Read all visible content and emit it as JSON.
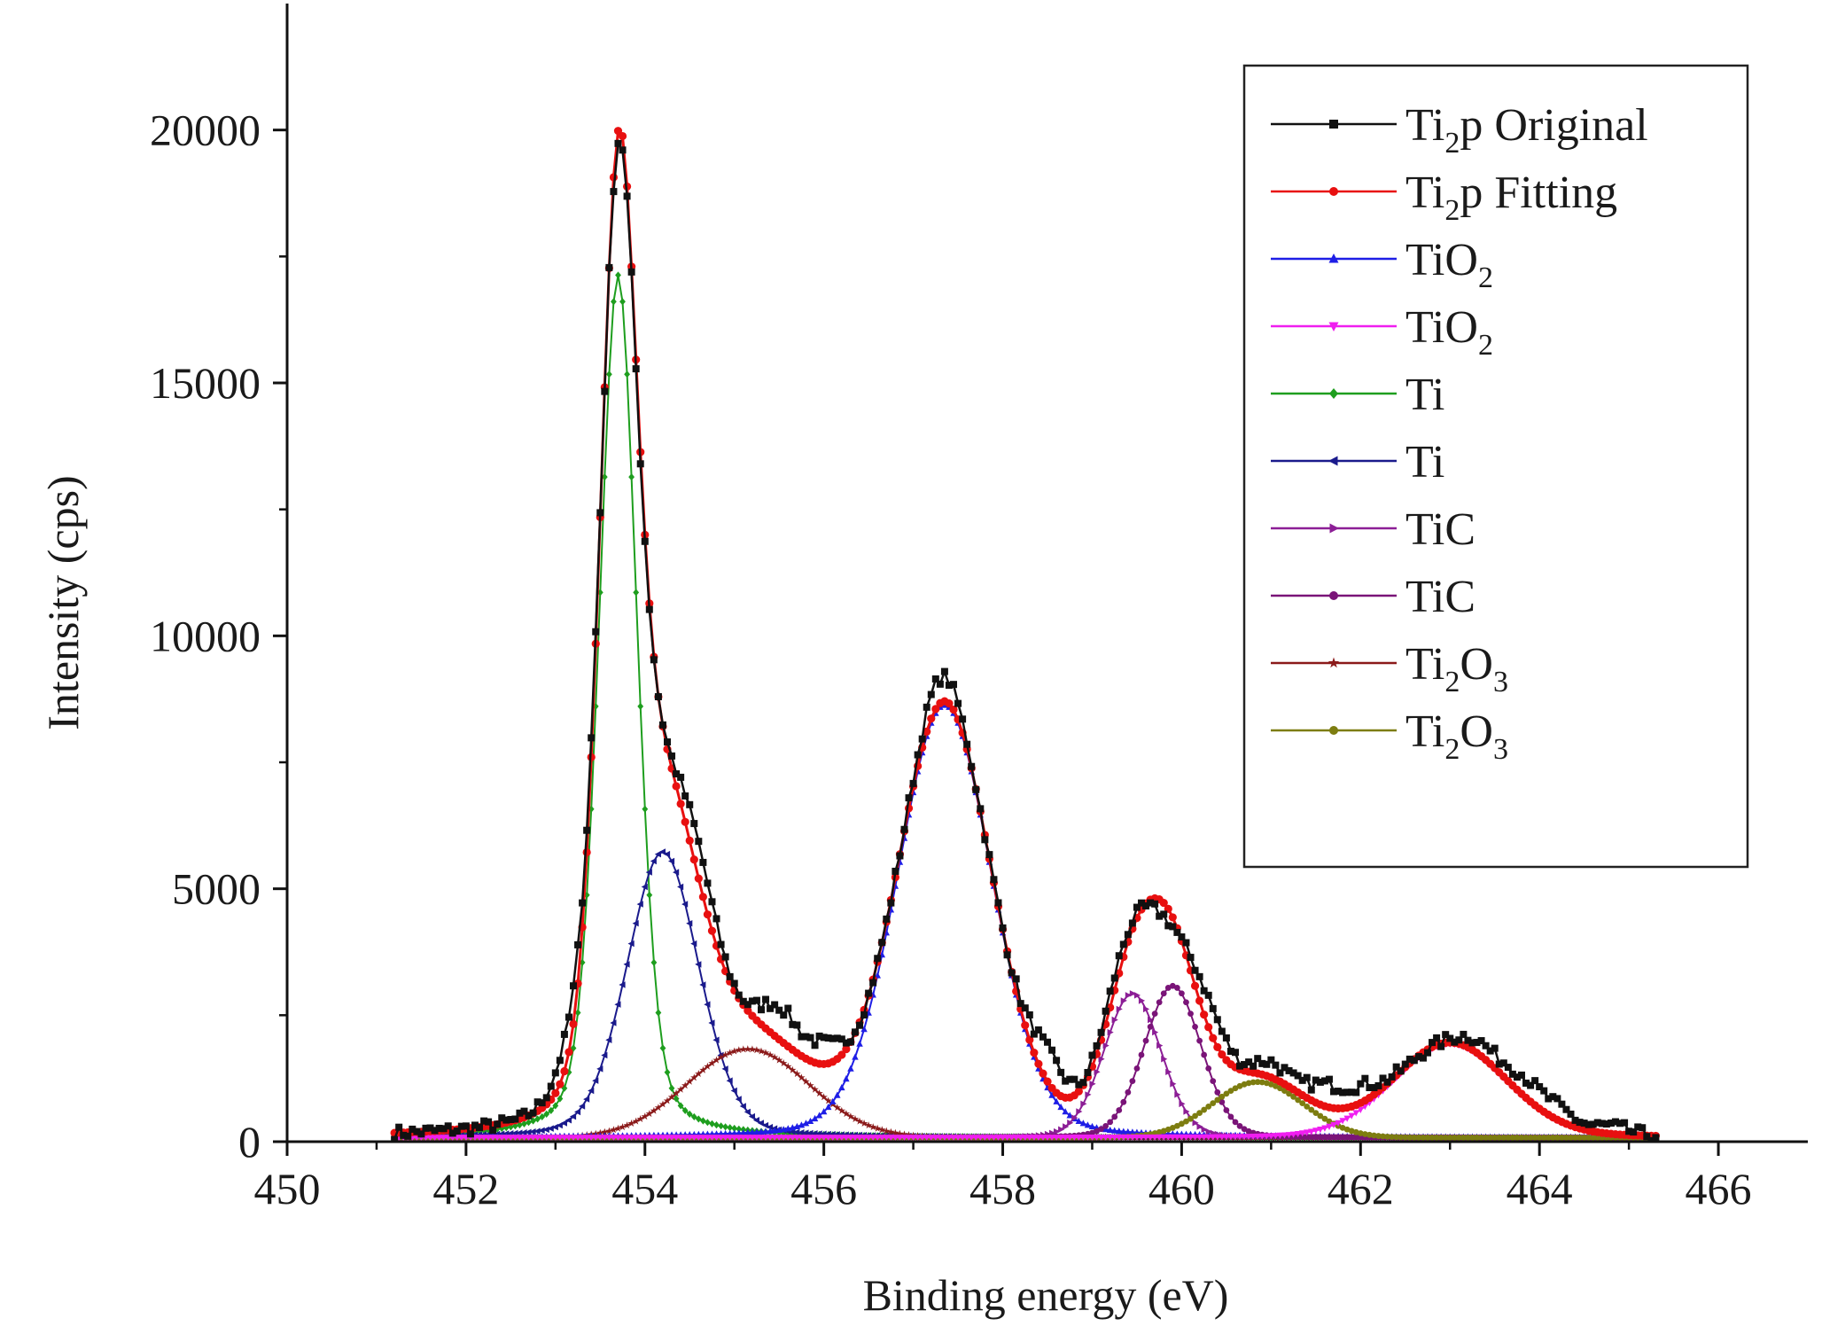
{
  "chart_data": {
    "type": "line",
    "title": "",
    "xlabel": "Binding energy (eV)",
    "ylabel": "Intensity (cps)",
    "xlim": [
      450,
      467
    ],
    "ylim": [
      0,
      22500
    ],
    "grid": false,
    "legend_position": "top-right",
    "x_ticks": [
      450,
      452,
      454,
      456,
      458,
      460,
      462,
      464,
      466
    ],
    "x_tick_labels": [
      "450",
      "452",
      "454",
      "456",
      "458",
      "460",
      "462",
      "464",
      "466"
    ],
    "y_ticks": [
      0,
      5000,
      10000,
      15000,
      20000
    ],
    "y_tick_labels": [
      "0",
      "5000",
      "10000",
      "15000",
      "20000"
    ],
    "x_range": [
      451.2,
      465.3
    ],
    "baseline": 80,
    "components": [
      {
        "key": "ti1",
        "label": "Ti",
        "color": "#1e9e1e",
        "marker": "diamond",
        "center": 453.7,
        "height": 17050,
        "fwhm": 0.5,
        "mix": 0.3
      },
      {
        "key": "ti2",
        "label": "Ti",
        "color": "#1a1a8c",
        "marker": "triangle-left",
        "center": 454.2,
        "height": 5650,
        "fwhm": 0.95,
        "mix": 0.2
      },
      {
        "key": "ti2o3a",
        "label": "Ti2O3",
        "color": "#8b1a1a",
        "marker": "star",
        "center": 455.15,
        "height": 1750,
        "fwhm": 1.6,
        "mix": 0.0
      },
      {
        "key": "tio2a",
        "label": "TiO2",
        "color": "#1e1ee6",
        "marker": "triangle-up",
        "center": 457.35,
        "height": 8550,
        "fwhm": 1.25,
        "mix": 0.15
      },
      {
        "key": "tica",
        "label": "TiC",
        "color": "#8c1e96",
        "marker": "triangle-right",
        "center": 459.45,
        "height": 2850,
        "fwhm": 0.75,
        "mix": 0.1
      },
      {
        "key": "ticb",
        "label": "TiC",
        "color": "#7a1478",
        "marker": "circle",
        "center": 459.9,
        "height": 3000,
        "fwhm": 0.75,
        "mix": 0.1
      },
      {
        "key": "ti2o3b",
        "label": "Ti2O3",
        "color": "#7d7d10",
        "marker": "circle",
        "center": 460.85,
        "height": 1100,
        "fwhm": 1.2,
        "mix": 0.0
      },
      {
        "key": "tio2b",
        "label": "TiO2",
        "color": "#f01ef0",
        "marker": "triangle-down",
        "center": 463.0,
        "height": 1850,
        "fwhm": 1.5,
        "mix": 0.1
      }
    ],
    "series": [
      {
        "name": "Ti2p Original",
        "color": "#111111",
        "marker": "square"
      },
      {
        "name": "Ti2p Fitting",
        "color": "#e81010",
        "marker": "circle"
      }
    ],
    "legend": [
      {
        "base": "Ti",
        "sub": "2",
        "rest": "p Original",
        "sub2": "",
        "color": "#111111",
        "marker": "square"
      },
      {
        "base": "Ti",
        "sub": "2",
        "rest": "p Fitting",
        "sub2": "",
        "color": "#e81010",
        "marker": "circle"
      },
      {
        "base": "TiO",
        "sub": "2",
        "rest": "",
        "sub2": "",
        "color": "#1e1ee6",
        "marker": "triangle-up"
      },
      {
        "base": "TiO",
        "sub": "2",
        "rest": "",
        "sub2": "",
        "color": "#f01ef0",
        "marker": "triangle-down"
      },
      {
        "base": "Ti",
        "sub": "",
        "rest": "",
        "sub2": "",
        "color": "#1e9e1e",
        "marker": "diamond"
      },
      {
        "base": "Ti",
        "sub": "",
        "rest": "",
        "sub2": "",
        "color": "#1a1a8c",
        "marker": "triangle-left"
      },
      {
        "base": "TiC",
        "sub": "",
        "rest": "",
        "sub2": "",
        "color": "#8c1e96",
        "marker": "triangle-right"
      },
      {
        "base": "TiC",
        "sub": "",
        "rest": "",
        "sub2": "",
        "color": "#7a1478",
        "marker": "circle"
      },
      {
        "base": "Ti",
        "sub": "2",
        "rest": "O",
        "sub2": "3",
        "color": "#8b1a1a",
        "marker": "star"
      },
      {
        "base": "Ti",
        "sub": "2",
        "rest": "O",
        "sub2": "3",
        "color": "#7d7d10",
        "marker": "circle"
      }
    ],
    "original_deviations": [
      {
        "x": 453.2,
        "dy": 700
      },
      {
        "x": 453.75,
        "dy": -250
      },
      {
        "x": 454.6,
        "dy": 700
      },
      {
        "x": 455.5,
        "dy": 650
      },
      {
        "x": 456.0,
        "dy": 400
      },
      {
        "x": 457.3,
        "dy": 500
      },
      {
        "x": 458.5,
        "dy": 650
      },
      {
        "x": 459.3,
        "dy": 300
      },
      {
        "x": 459.8,
        "dy": -300
      },
      {
        "x": 460.3,
        "dy": 600
      },
      {
        "x": 461.0,
        "dy": 300
      },
      {
        "x": 461.6,
        "dy": 400
      },
      {
        "x": 462.0,
        "dy": 300
      },
      {
        "x": 463.3,
        "dy": 250
      },
      {
        "x": 463.8,
        "dy": 350
      },
      {
        "x": 464.2,
        "dy": 250
      },
      {
        "x": 464.8,
        "dy": 150
      }
    ]
  }
}
